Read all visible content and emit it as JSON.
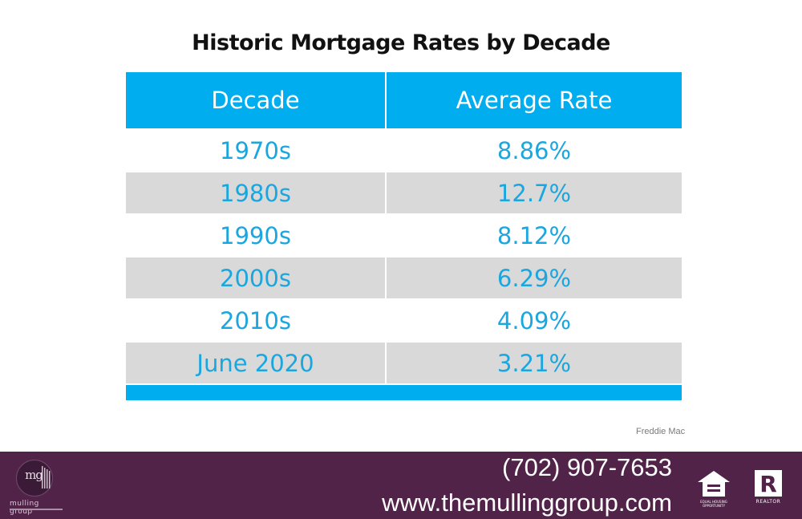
{
  "chart_data": {
    "type": "table",
    "title": "Historic Mortgage Rates by Decade",
    "columns": [
      "Decade",
      "Average Rate"
    ],
    "rows": [
      {
        "decade": "1970s",
        "rate": "8.86%"
      },
      {
        "decade": "1980s",
        "rate": "12.7%"
      },
      {
        "decade": "1990s",
        "rate": "8.12%"
      },
      {
        "decade": "2000s",
        "rate": "6.29%"
      },
      {
        "decade": "2010s",
        "rate": "4.09%"
      },
      {
        "decade": "June 2020",
        "rate": "3.21%"
      }
    ],
    "values": [
      8.86,
      12.7,
      8.12,
      6.29,
      4.09,
      3.21
    ],
    "source": "Freddie Mac"
  },
  "footer": {
    "phone": "(702) 907-7653",
    "website": "www.themullinggroup.com",
    "logo_monogram": "mg",
    "logo_name": "mulling group",
    "equal_housing_caption": "EQUAL HOUSING OPPORTUNITY",
    "realtor_caption": "REALTOR"
  },
  "colors": {
    "header_blue": "#00adee",
    "value_blue": "#1aa6df",
    "shade_gray": "#d9d9d9",
    "band_purple": "#522349"
  }
}
